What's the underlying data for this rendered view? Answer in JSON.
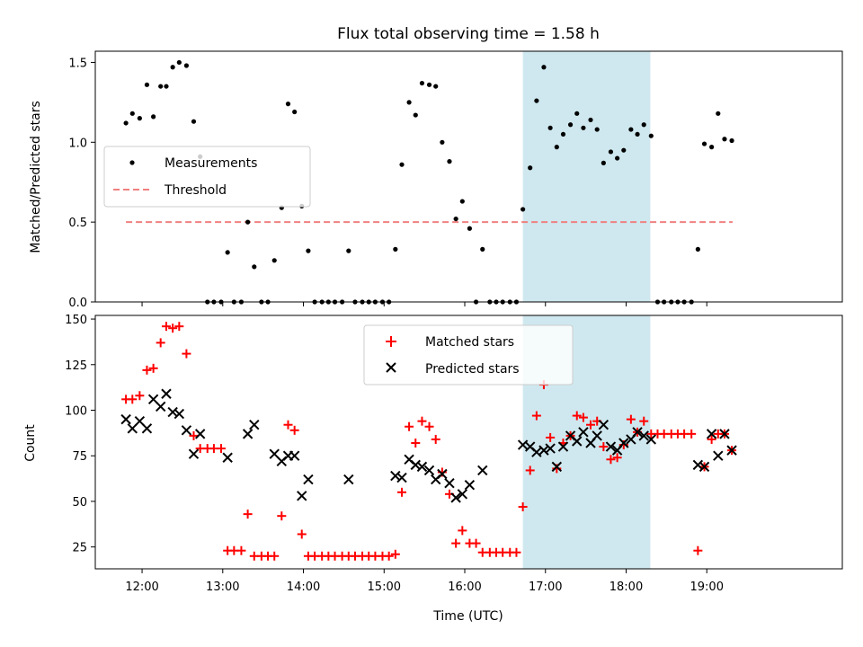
{
  "chart_data": {
    "title": "Flux total observing time = 1.58 h",
    "shaded_region_x": [
      16.72,
      18.3
    ],
    "shade_color": "#cfe8ef",
    "xlabel": "Time (UTC)",
    "xlim": [
      11.42,
      20.68
    ],
    "xticks": [
      {
        "value": 12,
        "label": "12:00"
      },
      {
        "value": 13,
        "label": "13:00"
      },
      {
        "value": 14,
        "label": "14:00"
      },
      {
        "value": 15,
        "label": "15:00"
      },
      {
        "value": 16,
        "label": "16:00"
      },
      {
        "value": 17,
        "label": "17:00"
      },
      {
        "value": 18,
        "label": "18:00"
      },
      {
        "value": 19,
        "label": "19:00"
      }
    ],
    "top": {
      "type": "scatter",
      "ylabel": "Matched/Predicted stars",
      "ylim": [
        0,
        1.57
      ],
      "yticks": [
        {
          "value": 0,
          "label": "0.0"
        },
        {
          "value": 0.5,
          "label": "0.5"
        },
        {
          "value": 1.0,
          "label": "1.0"
        },
        {
          "value": 1.5,
          "label": "1.5"
        }
      ],
      "legend": {
        "position": "center-left",
        "entries": [
          "Measurements",
          "Threshold"
        ]
      },
      "threshold": {
        "value": 0.5,
        "x": [
          11.8,
          19.32
        ],
        "color": "#f08080"
      },
      "measurements": {
        "color": "#000000",
        "x": [
          11.8,
          11.88,
          11.97,
          12.06,
          12.14,
          12.23,
          12.3,
          12.38,
          12.46,
          12.55,
          12.64,
          12.72,
          12.81,
          12.89,
          12.98,
          13.06,
          13.14,
          13.23,
          13.31,
          13.39,
          13.48,
          13.56,
          13.64,
          13.73,
          13.81,
          13.89,
          13.98,
          14.06,
          14.14,
          14.23,
          14.31,
          14.39,
          14.48,
          14.56,
          14.64,
          14.73,
          14.81,
          14.89,
          14.98,
          15.06,
          15.14,
          15.22,
          15.31,
          15.39,
          15.47,
          15.56,
          15.64,
          15.72,
          15.81,
          15.89,
          15.97,
          16.06,
          16.14,
          16.22,
          16.31,
          16.39,
          16.47,
          16.56,
          16.64,
          16.72,
          16.81,
          16.89,
          16.98,
          17.06,
          17.14,
          17.22,
          17.31,
          17.39,
          17.47,
          17.56,
          17.64,
          17.72,
          17.81,
          17.89,
          17.97,
          18.06,
          18.14,
          18.22,
          18.31,
          18.39,
          18.47,
          18.56,
          18.64,
          18.72,
          18.81,
          18.89,
          18.97,
          19.06,
          19.14,
          19.22,
          19.31
        ],
        "y": [
          1.12,
          1.18,
          1.15,
          1.36,
          1.16,
          1.35,
          1.35,
          1.47,
          1.5,
          1.48,
          1.13,
          0.91,
          0.0,
          0.0,
          0.0,
          0.31,
          0.0,
          0.0,
          0.5,
          0.22,
          0.0,
          0.0,
          0.26,
          0.59,
          1.24,
          1.19,
          0.6,
          0.32,
          0.0,
          0.0,
          0.0,
          0.0,
          0.0,
          0.32,
          0.0,
          0.0,
          0.0,
          0.0,
          0.0,
          0.0,
          0.33,
          0.86,
          1.25,
          1.17,
          1.37,
          1.36,
          1.35,
          1.0,
          0.88,
          0.52,
          0.63,
          0.46,
          0.0,
          0.33,
          0.0,
          0.0,
          0.0,
          0.0,
          0.0,
          0.58,
          0.84,
          1.26,
          1.47,
          1.09,
          0.97,
          1.05,
          1.11,
          1.18,
          1.09,
          1.14,
          1.08,
          0.87,
          0.94,
          0.9,
          0.95,
          1.08,
          1.05,
          1.11,
          1.04,
          0.0,
          0.0,
          0.0,
          0.0,
          0.0,
          0.0,
          0.33,
          0.99,
          0.97,
          1.18,
          1.02,
          1.01
        ]
      }
    },
    "bottom": {
      "type": "scatter",
      "ylabel": "Count",
      "ylim": [
        13,
        152
      ],
      "yticks": [
        {
          "value": 25,
          "label": "25"
        },
        {
          "value": 50,
          "label": "50"
        },
        {
          "value": 75,
          "label": "75"
        },
        {
          "value": 100,
          "label": "100"
        },
        {
          "value": 125,
          "label": "125"
        },
        {
          "value": 150,
          "label": "150"
        }
      ],
      "legend": {
        "position": "top-center",
        "entries": [
          "Matched stars",
          "Predicted stars"
        ]
      },
      "matched": {
        "name": "Matched stars",
        "color": "#ff0000",
        "marker": "+",
        "x": [
          11.8,
          11.88,
          11.97,
          12.06,
          12.14,
          12.23,
          12.3,
          12.38,
          12.46,
          12.55,
          12.64,
          12.72,
          12.81,
          12.89,
          12.98,
          13.06,
          13.14,
          13.23,
          13.31,
          13.39,
          13.48,
          13.56,
          13.64,
          13.73,
          13.81,
          13.89,
          13.98,
          14.06,
          14.14,
          14.23,
          14.31,
          14.39,
          14.48,
          14.56,
          14.64,
          14.73,
          14.81,
          14.89,
          14.98,
          15.06,
          15.14,
          15.22,
          15.31,
          15.39,
          15.47,
          15.56,
          15.64,
          15.72,
          15.81,
          15.89,
          15.97,
          16.06,
          16.14,
          16.22,
          16.31,
          16.39,
          16.47,
          16.56,
          16.64,
          16.72,
          16.81,
          16.89,
          16.98,
          17.06,
          17.14,
          17.22,
          17.31,
          17.39,
          17.47,
          17.56,
          17.64,
          17.72,
          17.81,
          17.89,
          17.97,
          18.06,
          18.14,
          18.22,
          18.31,
          18.39,
          18.47,
          18.56,
          18.64,
          18.72,
          18.81,
          18.89,
          18.97,
          19.06,
          19.14,
          19.22,
          19.31
        ],
        "y": [
          106,
          106,
          108,
          122,
          123,
          137,
          146,
          145,
          146,
          131,
          86,
          79,
          79,
          79,
          79,
          23,
          23,
          23,
          43,
          20,
          20,
          20,
          20,
          42,
          92,
          89,
          32,
          20,
          20,
          20,
          20,
          20,
          20,
          20,
          20,
          20,
          20,
          20,
          20,
          20,
          21,
          55,
          91,
          82,
          94,
          91,
          84,
          66,
          54,
          27,
          34,
          27,
          27,
          22,
          22,
          22,
          22,
          22,
          22,
          47,
          67,
          97,
          114,
          85,
          68,
          82,
          86,
          97,
          96,
          92,
          94,
          80,
          73,
          74,
          81,
          95,
          88,
          94,
          87,
          87,
          87,
          87,
          87,
          87,
          87,
          23,
          69,
          84,
          87,
          87,
          78
        ]
      },
      "predicted": {
        "name": "Predicted stars",
        "color": "#000000",
        "marker": "x",
        "x": [
          11.8,
          11.88,
          11.97,
          12.06,
          12.14,
          12.23,
          12.3,
          12.38,
          12.46,
          12.55,
          12.64,
          12.72,
          13.06,
          13.31,
          13.39,
          13.64,
          13.73,
          13.81,
          13.89,
          13.98,
          14.06,
          14.56,
          15.14,
          15.22,
          15.31,
          15.39,
          15.47,
          15.56,
          15.64,
          15.72,
          15.81,
          15.89,
          15.97,
          16.06,
          16.22,
          16.72,
          16.81,
          16.89,
          16.98,
          17.06,
          17.14,
          17.22,
          17.31,
          17.39,
          17.47,
          17.56,
          17.64,
          17.72,
          17.81,
          17.89,
          17.97,
          18.06,
          18.14,
          18.22,
          18.31,
          18.89,
          18.97,
          19.06,
          19.14,
          19.22,
          19.31
        ],
        "y": [
          95,
          90,
          94,
          90,
          106,
          102,
          109,
          99,
          98,
          89,
          76,
          87,
          74,
          87,
          92,
          76,
          72,
          75,
          75,
          53,
          62,
          62,
          64,
          63,
          73,
          70,
          69,
          67,
          62,
          65,
          60,
          52,
          54,
          59,
          67,
          81,
          80,
          77,
          78,
          79,
          69,
          80,
          86,
          83,
          88,
          82,
          86,
          92,
          80,
          78,
          82,
          84,
          88,
          86,
          84,
          70,
          69,
          87,
          75,
          87,
          78
        ]
      }
    }
  }
}
